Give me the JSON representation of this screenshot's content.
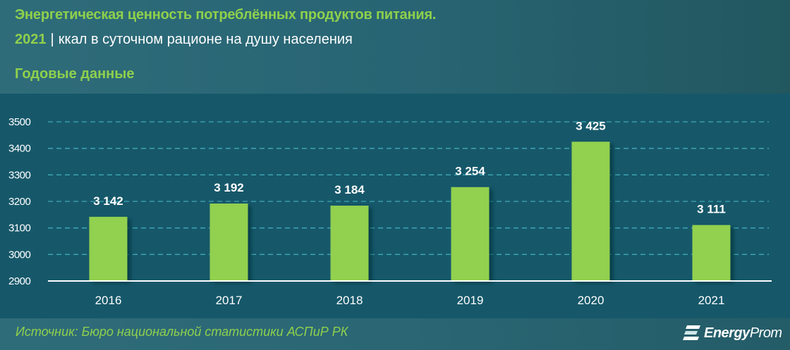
{
  "header": {
    "title": "Энергетическая ценность потреблённых продуктов питания.",
    "year": "2021",
    "separator": "|",
    "unit_label": "ккал в суточном рационе на душу населения",
    "period_label": "Годовые данные"
  },
  "footer": {
    "source": "Источник: Бюро национальной статистики АСПиР РК",
    "logo_bold": "Energy",
    "logo_light": "Prom"
  },
  "colors": {
    "bar": "#92d050",
    "accent_text": "#8fd04c",
    "panel_bg": "#16586a",
    "gridline": "#3fa9b8",
    "axis": "#ffffff"
  },
  "chart_data": {
    "type": "bar",
    "title": "Энергетическая ценность потреблённых продуктов питания. 2021 | ккал в суточном рационе на душу населения",
    "subtitle": "Годовые данные",
    "categories": [
      "2016",
      "2017",
      "2018",
      "2019",
      "2020",
      "2021"
    ],
    "values": [
      3142,
      3192,
      3184,
      3254,
      3425,
      3111
    ],
    "value_labels": [
      "3 142",
      "3 192",
      "3 184",
      "3 254",
      "3 425",
      "3 111"
    ],
    "xlabel": "",
    "ylabel": "ккал",
    "ylim": [
      2900,
      3500
    ],
    "yticks": [
      2900,
      3000,
      3100,
      3200,
      3300,
      3400,
      3500
    ],
    "grid": "horizontal dashed",
    "legend": "none",
    "source": "Бюро национальной статистики АСПиР РК"
  }
}
